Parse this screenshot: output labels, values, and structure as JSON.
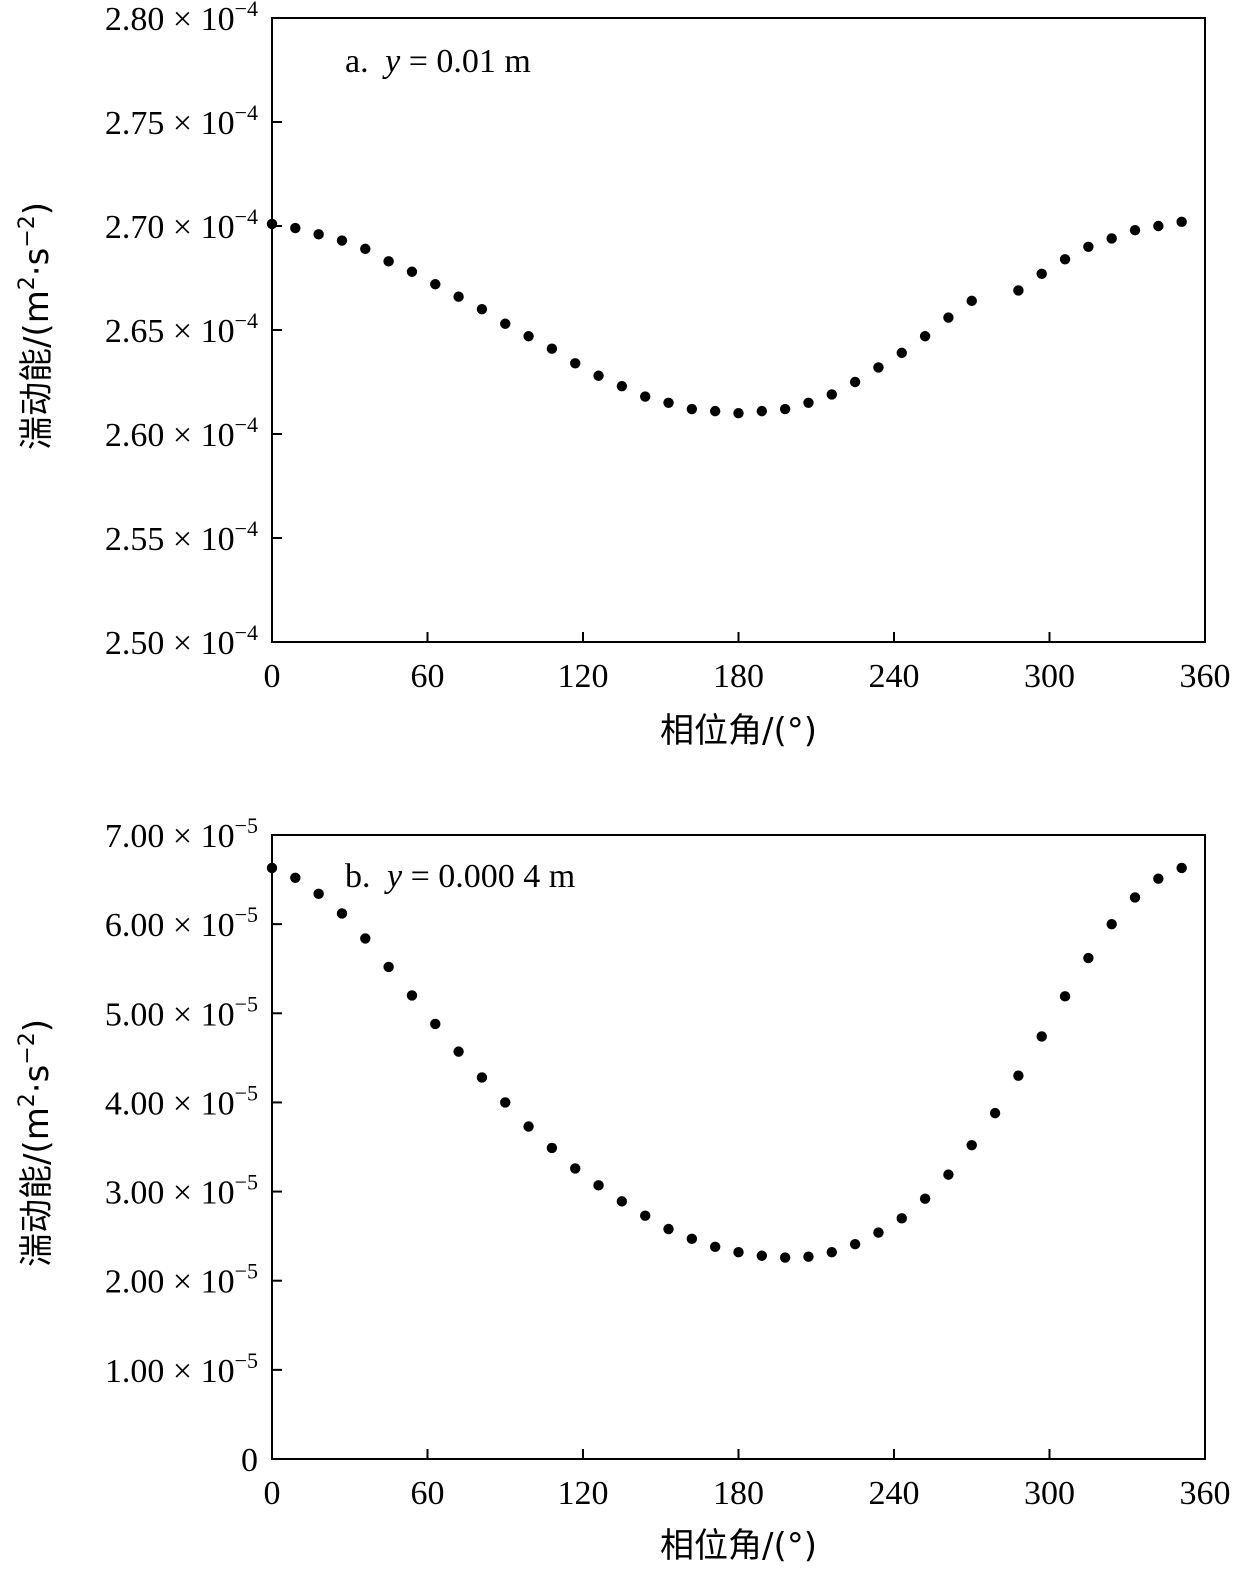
{
  "chart_data": [
    {
      "type": "scatter",
      "panel_label": "a.",
      "annotation_var": "y",
      "annotation_value": " = 0.01 m",
      "xlabel": "相位角/(°)",
      "ylabel_main": "湍动能/(m",
      "ylabel_unit_mid": "·s",
      "ylabel_end": ")",
      "ylabel_sup1": "2",
      "ylabel_sup2": "−2",
      "xlim": [
        0,
        360
      ],
      "ylim": [
        0.00025,
        0.00028
      ],
      "x_ticks": [
        0,
        60,
        120,
        180,
        240,
        300,
        360
      ],
      "x_tick_labels": [
        "0",
        "60",
        "120",
        "180",
        "240",
        "300",
        "360"
      ],
      "y_ticks": [
        {
          "value": 0.00025,
          "mantissa": "2.50 × 10",
          "exponent": "−4"
        },
        {
          "value": 0.000255,
          "mantissa": "2.55 × 10",
          "exponent": "−4"
        },
        {
          "value": 0.00026,
          "mantissa": "2.60 × 10",
          "exponent": "−4"
        },
        {
          "value": 0.000265,
          "mantissa": "2.65 × 10",
          "exponent": "−4"
        },
        {
          "value": 0.00027,
          "mantissa": "2.70 × 10",
          "exponent": "−4"
        },
        {
          "value": 0.000275,
          "mantissa": "2.75 × 10",
          "exponent": "−4"
        },
        {
          "value": 0.00028,
          "mantissa": "2.80 × 10",
          "exponent": "−4"
        }
      ],
      "x": [
        0,
        9,
        18,
        27,
        36,
        45,
        54,
        63,
        72,
        81,
        90,
        99,
        108,
        117,
        126,
        135,
        144,
        153,
        162,
        171,
        180,
        189,
        198,
        207,
        216,
        225,
        234,
        243,
        252,
        261,
        270,
        288,
        297,
        306,
        315,
        324,
        333,
        342,
        351
      ],
      "y": [
        0.0002701,
        0.0002699,
        0.0002696,
        0.0002693,
        0.0002689,
        0.0002683,
        0.0002678,
        0.0002672,
        0.0002666,
        0.000266,
        0.0002653,
        0.0002647,
        0.0002641,
        0.0002634,
        0.0002628,
        0.0002623,
        0.0002618,
        0.0002615,
        0.0002612,
        0.0002611,
        0.000261,
        0.0002611,
        0.0002612,
        0.0002615,
        0.0002619,
        0.0002625,
        0.0002632,
        0.0002639,
        0.0002647,
        0.0002656,
        0.0002664,
        0.0002669,
        0.0002677,
        0.0002684,
        0.000269,
        0.0002694,
        0.0002698,
        0.00027,
        0.0002702
      ],
      "marker_color": "#000000"
    },
    {
      "type": "scatter",
      "panel_label": "b.",
      "annotation_var": "y",
      "annotation_value": " = 0.000 4 m",
      "xlabel": "相位角/(°)",
      "ylabel_main": "湍动能/(m",
      "ylabel_unit_mid": "·s",
      "ylabel_end": ")",
      "ylabel_sup1": "2",
      "ylabel_sup2": "−2",
      "xlim": [
        0,
        360
      ],
      "ylim": [
        0,
        7e-05
      ],
      "x_ticks": [
        0,
        60,
        120,
        180,
        240,
        300,
        360
      ],
      "x_tick_labels": [
        "0",
        "60",
        "120",
        "180",
        "240",
        "300",
        "360"
      ],
      "y_ticks": [
        {
          "value": 0,
          "mantissa": "0",
          "exponent": ""
        },
        {
          "value": 1e-05,
          "mantissa": "1.00 × 10",
          "exponent": "−5"
        },
        {
          "value": 2e-05,
          "mantissa": "2.00 × 10",
          "exponent": "−5"
        },
        {
          "value": 3e-05,
          "mantissa": "3.00 × 10",
          "exponent": "−5"
        },
        {
          "value": 4e-05,
          "mantissa": "4.00 × 10",
          "exponent": "−5"
        },
        {
          "value": 5e-05,
          "mantissa": "5.00 × 10",
          "exponent": "−5"
        },
        {
          "value": 6e-05,
          "mantissa": "6.00 × 10",
          "exponent": "−5"
        },
        {
          "value": 7e-05,
          "mantissa": "7.00 × 10",
          "exponent": "−5"
        }
      ],
      "x": [
        0,
        9,
        18,
        27,
        36,
        45,
        54,
        63,
        72,
        81,
        90,
        99,
        108,
        117,
        126,
        135,
        144,
        153,
        162,
        171,
        180,
        189,
        198,
        207,
        216,
        225,
        234,
        243,
        252,
        261,
        270,
        279,
        288,
        297,
        306,
        315,
        324,
        333,
        342,
        351
      ],
      "y": [
        6.63e-05,
        6.52e-05,
        6.34e-05,
        6.12e-05,
        5.84e-05,
        5.52e-05,
        5.2e-05,
        4.88e-05,
        4.57e-05,
        4.28e-05,
        4e-05,
        3.73e-05,
        3.49e-05,
        3.26e-05,
        3.07e-05,
        2.89e-05,
        2.73e-05,
        2.58e-05,
        2.47e-05,
        2.38e-05,
        2.32e-05,
        2.28e-05,
        2.26e-05,
        2.27e-05,
        2.32e-05,
        2.41e-05,
        2.54e-05,
        2.7e-05,
        2.92e-05,
        3.19e-05,
        3.52e-05,
        3.88e-05,
        4.3e-05,
        4.74e-05,
        5.19e-05,
        5.62e-05,
        6e-05,
        6.3e-05,
        6.51e-05,
        6.63e-05
      ],
      "marker_color": "#000000"
    }
  ]
}
